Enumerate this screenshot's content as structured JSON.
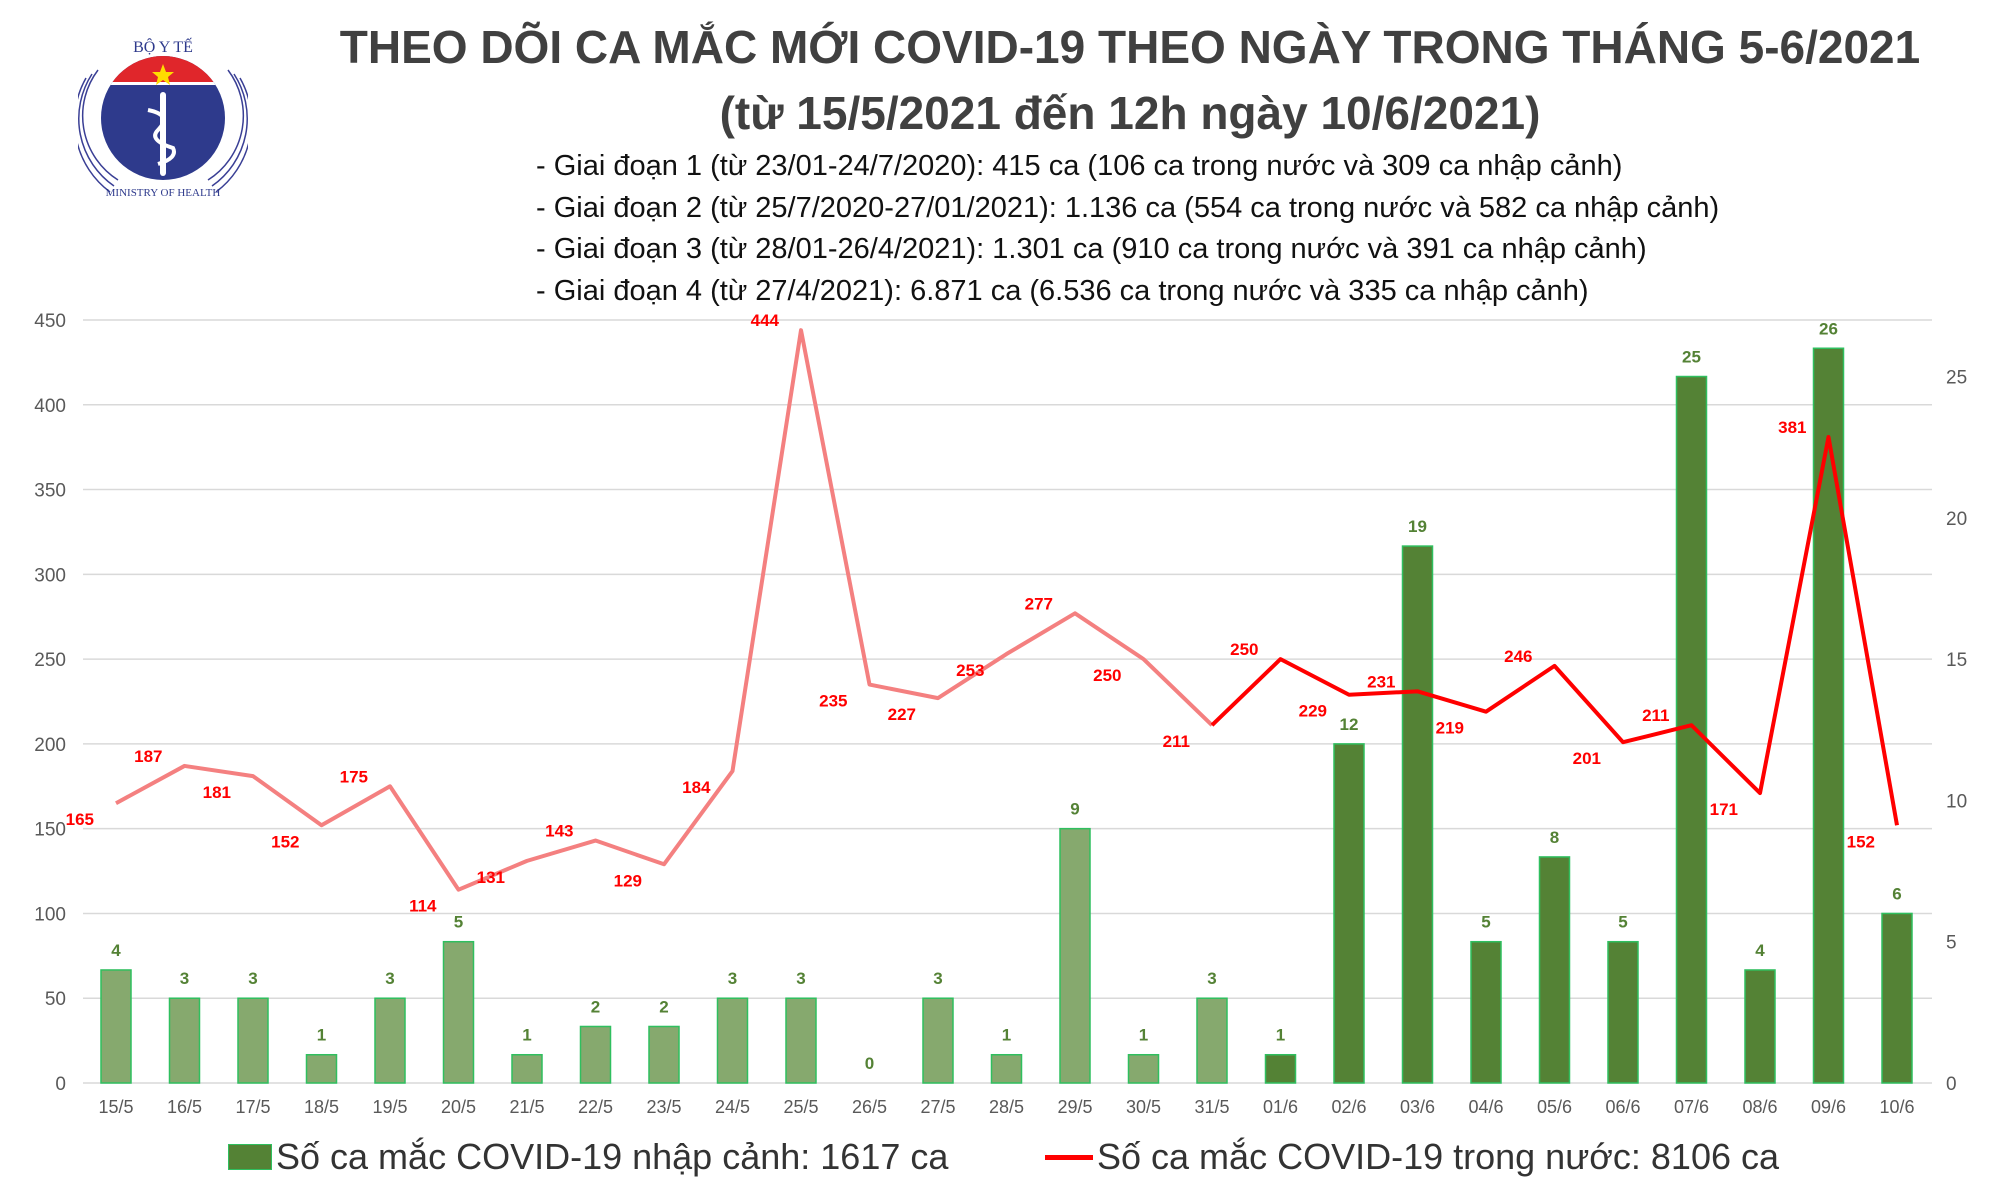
{
  "header": {
    "title": "THEO DÕI CA MẮC MỚI COVID-19 THEO NGÀY TRONG THÁNG 5-6/2021",
    "subtitle": "(từ 15/5/2021 đến 12h ngày 10/6/2021)",
    "bullets": [
      "- Giai đoạn 1 (từ 23/01-24/7/2020): 415 ca (106 ca trong nước và 309 ca nhập cảnh)",
      "- Giai đoạn 2 (từ 25/7/2020-27/01/2021): 1.136 ca (554 ca trong nước và 582 ca nhập cảnh)",
      "- Giai đoạn 3 (từ 28/01-26/4/2021): 1.301 ca (910 ca trong nước và 391 ca nhập cảnh)",
      "- Giai đoạn 4 (từ 27/4/2021): 6.871 ca (6.536 ca trong nước và 335 ca nhập cảnh)"
    ]
  },
  "logo": {
    "top_text": "BỘ Y TẾ",
    "bottom_text": "MINISTRY OF HEALTH"
  },
  "chart_data": {
    "type": "bar+line",
    "categories": [
      "15/5",
      "16/5",
      "17/5",
      "18/5",
      "19/5",
      "20/5",
      "21/5",
      "22/5",
      "23/5",
      "24/5",
      "25/5",
      "26/5",
      "27/5",
      "28/5",
      "29/5",
      "30/5",
      "31/5",
      "01/6",
      "02/6",
      "03/6",
      "04/6",
      "05/6",
      "06/6",
      "07/6",
      "08/6",
      "09/6",
      "10/6"
    ],
    "series": [
      {
        "name": "Số ca mắc COVID-19 nhập cảnh: 1617 ca",
        "type": "bar",
        "axis": "right",
        "color": "#548235",
        "faded_color": "#86a96e",
        "values": [
          4,
          3,
          3,
          1,
          3,
          5,
          1,
          2,
          2,
          3,
          3,
          0,
          3,
          1,
          9,
          1,
          3,
          1,
          12,
          19,
          5,
          8,
          5,
          25,
          4,
          26,
          6
        ]
      },
      {
        "name": "Số ca mắc COVID-19 trong nước: 8106 ca",
        "type": "line",
        "axis": "left",
        "color": "#ff0000",
        "faded_color": "#f48080",
        "values": [
          165,
          187,
          181,
          152,
          175,
          114,
          131,
          143,
          129,
          184,
          444,
          235,
          227,
          253,
          277,
          250,
          211,
          250,
          229,
          231,
          219,
          246,
          201,
          211,
          171,
          381,
          152
        ]
      }
    ],
    "left_axis": {
      "range": [
        0,
        450
      ],
      "ticks": [
        0,
        50,
        100,
        150,
        200,
        250,
        300,
        350,
        400,
        450
      ]
    },
    "right_axis": {
      "range": [
        0,
        27
      ],
      "ticks": [
        0,
        5,
        10,
        15,
        20,
        25
      ]
    },
    "grid": true,
    "legend_placement": "bottom",
    "bar_label_color": "#548235",
    "line_label_color": "#ff0000"
  },
  "legend": {
    "bar_label": "Số ca mắc COVID-19 nhập cảnh: 1617 ca",
    "line_label": "Số ca mắc COVID-19 trong nước: 8106 ca"
  }
}
